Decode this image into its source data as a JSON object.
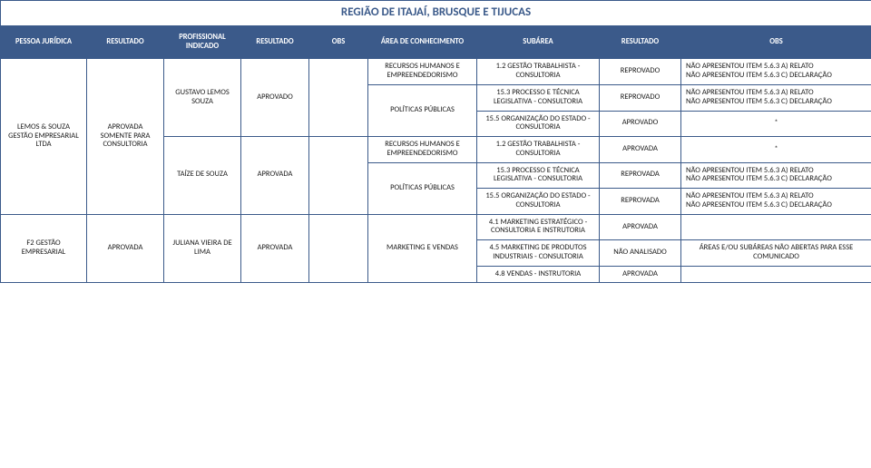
{
  "title": "REGIÃO DE ITAJAÍ, BRUSQUE E TIJUCAS",
  "headers": {
    "c0": "PESSOA JURÍDICA",
    "c1": "RESULTADO",
    "c2": "PROFISSIONAL INDICADO",
    "c3": "RESULTADO",
    "c4": "OBS",
    "c5": "ÁREA DE CONHECIMENTO",
    "c6": "SUBÁREA",
    "c7": "RESULTADO",
    "c8": "OBS"
  },
  "r1": {
    "c5": "RECURSOS HUMANOS E EMPREENDEDORISMO",
    "c6": "1.2 GESTÃO TRABALHISTA - CONSULTORIA",
    "c7": "REPROVADO",
    "c8": "NÃO APRESENTOU ITEM 5.6.3 A) RELATO\nNÃO APRESENTOU ITEM 5.6.3 C) DECLARAÇÃO"
  },
  "r2": {
    "c0": "LEMOS & SOUZA GESTÃO EMPRESARIAL LTDA",
    "c1": "APROVADA SOMENTE PARA CONSULTORIA",
    "c2": "GUSTAVO LEMOS SOUZA",
    "c3": "APROVADO",
    "c5": "POLÍTICAS PÚBLICAS",
    "c6": "15.3 PROCESSO E TÉCNICA LEGISLATIVA - CONSULTORIA",
    "c7": "REPROVADO",
    "c8": "NÃO APRESENTOU ITEM 5.6.3 A) RELATO\nNÃO APRESENTOU ITEM 5.6.3 C) DECLARAÇÃO"
  },
  "r3": {
    "c6": "15.5 ORGANIZAÇÃO DO ESTADO - CONSULTORIA",
    "c7": "APROVADO",
    "c8": "*"
  },
  "r4": {
    "c5": "RECURSOS HUMANOS E EMPREENDEDORISMO",
    "c6": "1.2 GESTÃO TRABALHISTA - CONSULTORIA",
    "c7": "APROVADA",
    "c8": "*"
  },
  "r5": {
    "c2": "TAÍZE DE SOUZA",
    "c3": "APROVADA",
    "c5": "POLÍTICAS PÚBLICAS",
    "c6": "15.3 PROCESSO E TÉCNICA LEGISLATIVA - CONSULTORIA",
    "c7": "REPROVADA",
    "c8": "NÃO APRESENTOU ITEM 5.6.3 A) RELATO\nNÃO APRESENTOU ITEM 5.6.3 C) DECLARAÇÃO"
  },
  "r6": {
    "c6": "15.5 ORGANIZAÇÃO DO ESTADO - CONSULTORIA",
    "c7": "REPROVADA",
    "c8": "NÃO APRESENTOU ITEM 5.6.3 A) RELATO\nNÃO APRESENTOU ITEM 5.6.3 C) DECLARAÇÃO"
  },
  "r7": {
    "c0": "F2 GESTÃO EMPRESARIAL",
    "c1": "APROVADA",
    "c2": "JULIANA VIEIRA DE LIMA",
    "c3": "APROVADA",
    "c5": "MARKETING E VENDAS",
    "c6": "4.1 MARKETING ESTRATÉGICO - CONSULTORIA E INSTRUTORIA",
    "c7": "APROVADA",
    "c8": ""
  },
  "r8": {
    "c6": "4.5 MARKETING DE PRODUTOS INDUSTRIAIS - CONSULTORIA",
    "c7": "NÃO ANALISADO",
    "c8": "ÁREAS E/OU SUBÁREAS NÃO ABERTAS PARA ESSE COMUNICADO"
  },
  "r9": {
    "c6": "4.8 VENDAS - INSTRUTORIA",
    "c7": "APROVADA",
    "c8": ""
  },
  "colWidths": {
    "c0": 95,
    "c1": 85,
    "c2": 85,
    "c3": 75,
    "c4": 65,
    "c5": 120,
    "c6": 135,
    "c7": 90,
    "c8": 210
  }
}
